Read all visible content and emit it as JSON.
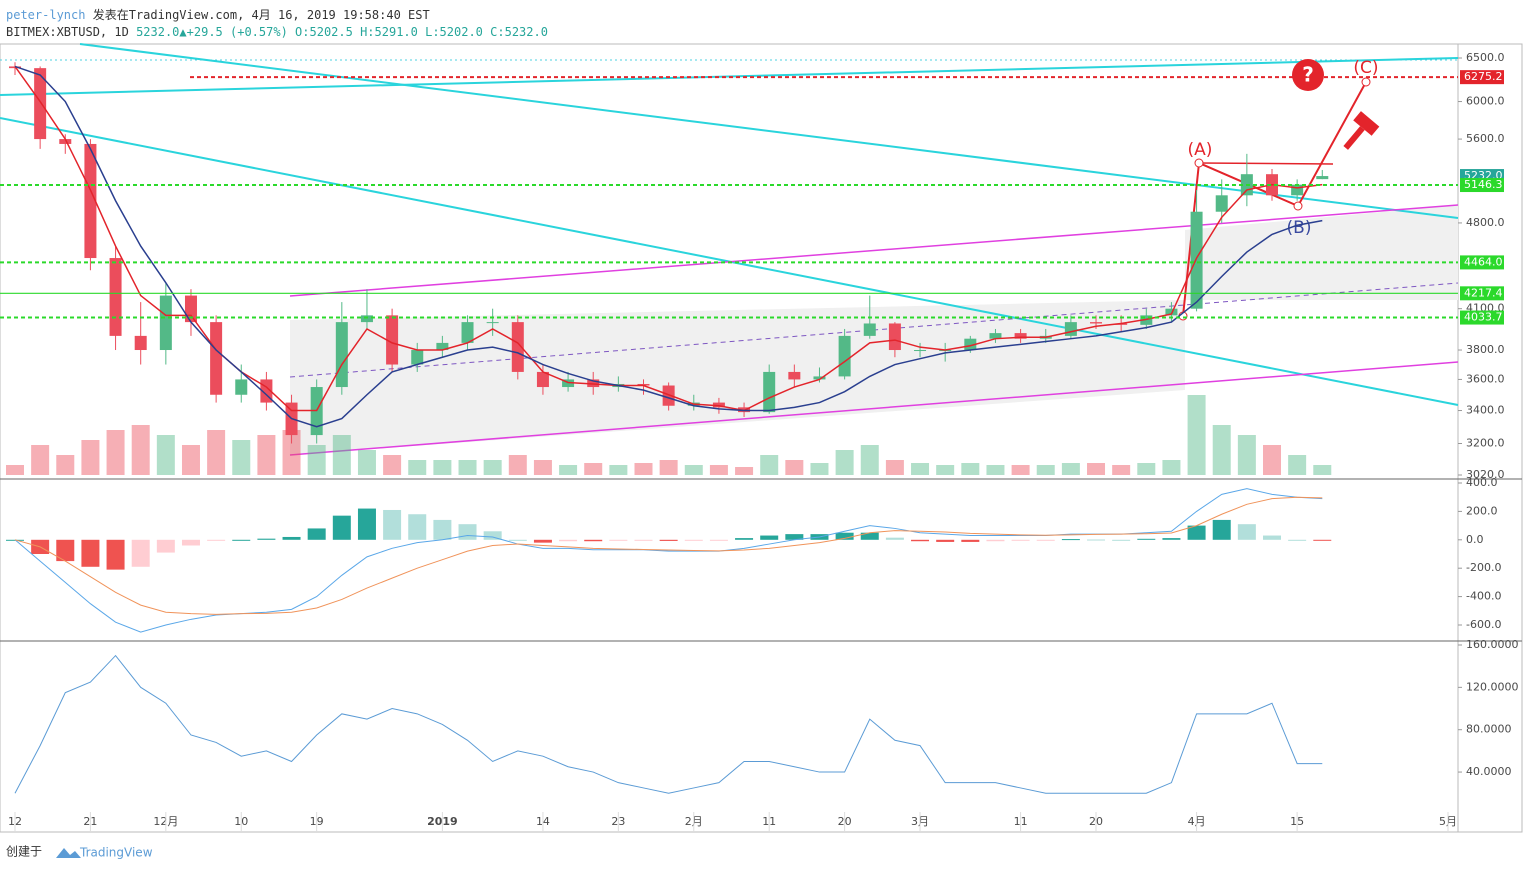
{
  "header": {
    "author": "peter-lynch",
    "published": "发表在TradingView.com, 4月 16, 2019 19:58:40 EST",
    "symbol": "BITMEX:XBTUSD, 1D",
    "last": "5232.0",
    "change": "+29.5 (+0.57%)",
    "open": "O:5202.5",
    "high": "H:5291.0",
    "low": "L:5202.0",
    "close": "C:5232.0"
  },
  "footer": {
    "created": "创建于",
    "brand": "TradingView"
  },
  "annotations": {
    "a": "(A)",
    "b": "(B)",
    "c": "(C)",
    "question": "?"
  },
  "chart_data": [
    {
      "type": "candlestick",
      "log_scale": true,
      "ylim": [
        3020,
        6500
      ],
      "yticks": [
        {
          "value": 6500,
          "label": "6500.0"
        },
        {
          "value": 6000,
          "label": "6000.0"
        },
        {
          "value": 5600,
          "label": "5600.0"
        },
        {
          "value": 4800,
          "label": "4800.0"
        },
        {
          "value": 4100,
          "label": "4100.0"
        },
        {
          "value": 3800,
          "label": "3800.0"
        },
        {
          "value": 3600,
          "label": "3600.0"
        },
        {
          "value": 3400,
          "label": "3400.0"
        },
        {
          "value": 3200,
          "label": "3200.0"
        },
        {
          "value": 3020,
          "label": "3020.0"
        }
      ],
      "categories": [
        "12",
        null,
        null,
        "21",
        null,
        null,
        "12月",
        null,
        null,
        "10",
        null,
        null,
        "19",
        null,
        null,
        null,
        null,
        "2019",
        null,
        null,
        null,
        "14",
        null,
        null,
        "23",
        null,
        null,
        "2月",
        null,
        null,
        "11",
        null,
        null,
        "20",
        null,
        null,
        "3月",
        null,
        null,
        null,
        "11",
        null,
        null,
        "20",
        null,
        null,
        null,
        "4月",
        null,
        null,
        null,
        "15",
        null,
        null,
        null,
        null,
        null,
        "5月"
      ],
      "up_color": "#53b987",
      "down_color": "#eb4d5c",
      "open": [
        6400,
        6380,
        5600,
        5550,
        4500,
        3900,
        3800,
        4200,
        4000,
        3500,
        3600,
        3450,
        3250,
        3550,
        4000,
        4050,
        3700,
        3800,
        3850,
        4000,
        4000,
        3650,
        3550,
        3600,
        3550,
        3570,
        3560,
        3430,
        3450,
        3420,
        3390,
        3650,
        3600,
        3620,
        3900,
        3990,
        3800,
        3800,
        3800,
        3880,
        3920,
        3880,
        3900,
        4000,
        3990,
        3980,
        4050,
        4100,
        4900,
        5050,
        5250,
        5050,
        5202.5,
        null,
        null,
        null,
        null,
        null
      ],
      "high": [
        6450,
        6400,
        5650,
        5600,
        4600,
        4150,
        4300,
        4250,
        4050,
        3700,
        3650,
        3500,
        3600,
        4150,
        4250,
        4100,
        3850,
        3900,
        4050,
        4100,
        4050,
        3700,
        3650,
        3650,
        3620,
        3600,
        3580,
        3500,
        3480,
        3450,
        3700,
        3700,
        3680,
        3950,
        4200,
        4000,
        3850,
        3850,
        3900,
        3950,
        3950,
        3950,
        4050,
        4050,
        4050,
        4100,
        4150,
        5100,
        5200,
        5450,
        5300,
        5200,
        5291,
        null,
        null,
        null,
        null,
        null
      ],
      "low": [
        6300,
        5500,
        5450,
        4400,
        3800,
        3700,
        3700,
        3900,
        3450,
        3450,
        3400,
        3200,
        3200,
        3500,
        3950,
        3650,
        3650,
        3750,
        3800,
        3900,
        3600,
        3500,
        3520,
        3500,
        3520,
        3500,
        3400,
        3400,
        3380,
        3360,
        3380,
        3550,
        3580,
        3600,
        3880,
        3750,
        3750,
        3720,
        3780,
        3850,
        3850,
        3850,
        3880,
        3950,
        3930,
        3950,
        4000,
        4080,
        4800,
        4950,
        5000,
        5000,
        5202,
        null,
        null,
        null,
        null,
        null
      ],
      "close": [
        6380,
        5600,
        5550,
        4500,
        3900,
        3800,
        4200,
        4000,
        3500,
        3600,
        3450,
        3250,
        3550,
        4000,
        4050,
        3700,
        3800,
        3850,
        4000,
        4000,
        3650,
        3550,
        3600,
        3550,
        3570,
        3560,
        3430,
        3450,
        3420,
        3390,
        3650,
        3600,
        3620,
        3900,
        3990,
        3800,
        3800,
        3800,
        3880,
        3920,
        3880,
        3900,
        4000,
        3990,
        3980,
        4050,
        4100,
        4900,
        5050,
        5250,
        5050,
        5150,
        5232,
        null,
        null,
        null,
        null,
        null
      ],
      "volume": [
        10,
        30,
        20,
        35,
        45,
        50,
        40,
        30,
        45,
        35,
        40,
        45,
        30,
        40,
        25,
        20,
        15,
        15,
        15,
        15,
        20,
        15,
        10,
        12,
        10,
        12,
        15,
        10,
        10,
        8,
        20,
        15,
        12,
        25,
        30,
        15,
        12,
        10,
        12,
        10,
        10,
        10,
        12,
        12,
        10,
        12,
        15,
        80,
        50,
        40,
        30,
        20,
        10,
        null,
        null,
        null,
        null,
        null
      ],
      "series": [
        {
          "color": "#e3242b",
          "values": [
            6400,
            6000,
            5600,
            5100,
            4600,
            4200,
            4050,
            4050,
            3800,
            3650,
            3550,
            3400,
            3400,
            3700,
            3950,
            3850,
            3800,
            3800,
            3850,
            3950,
            3850,
            3650,
            3580,
            3570,
            3560,
            3560,
            3500,
            3440,
            3430,
            3400,
            3480,
            3550,
            3600,
            3720,
            3850,
            3870,
            3820,
            3800,
            3830,
            3880,
            3890,
            3890,
            3930,
            3970,
            3990,
            4020,
            4060,
            4500,
            4850,
            5100,
            5150,
            5120,
            5150,
            null,
            null,
            null,
            null,
            null
          ]
        },
        {
          "color": "#2a3f8f",
          "values": [
            6400,
            6300,
            6000,
            5500,
            5000,
            4600,
            4300,
            4000,
            3800,
            3650,
            3500,
            3350,
            3300,
            3350,
            3500,
            3650,
            3700,
            3750,
            3800,
            3820,
            3780,
            3700,
            3640,
            3590,
            3560,
            3530,
            3480,
            3430,
            3410,
            3400,
            3400,
            3420,
            3450,
            3520,
            3620,
            3700,
            3740,
            3780,
            3800,
            3820,
            3840,
            3860,
            3880,
            3900,
            3930,
            3960,
            4000,
            4150,
            4350,
            4550,
            4700,
            4780,
            4820,
            null,
            null,
            null,
            null,
            null
          ]
        }
      ],
      "price_labels": [
        {
          "value": 6275.2,
          "label": "6275.2",
          "color": "#e3242b",
          "style": "dashed"
        },
        {
          "value": 5232.0,
          "label": "5232.0",
          "color": "#26a69a",
          "style": "none"
        },
        {
          "value": 5146.3,
          "label": "5146.3",
          "color": "#2bd92b",
          "style": "dashed"
        },
        {
          "value": 4464.0,
          "label": "4464.0",
          "color": "#2bd92b",
          "style": "dashed"
        },
        {
          "value": 4217.4,
          "label": "4217.4",
          "color": "#2bd92b",
          "style": "solid"
        },
        {
          "value": 4033.7,
          "label": "4033.7",
          "color": "#2bd92b",
          "style": "dashed"
        }
      ]
    },
    {
      "type": "macd",
      "ylim": [
        -705,
        425
      ],
      "yticks": [
        {
          "value": 400,
          "label": "400.0"
        },
        {
          "value": 200,
          "label": "200.0"
        },
        {
          "value": 0,
          "label": "0.0"
        },
        {
          "value": -200,
          "label": "-200.0"
        },
        {
          "value": -400,
          "label": "-400.0"
        },
        {
          "value": -600,
          "label": "-600.0"
        }
      ],
      "histogram": [
        0,
        -100,
        -150,
        -190,
        -210,
        -190,
        -90,
        -40,
        -5,
        0,
        8,
        20,
        80,
        170,
        220,
        210,
        180,
        140,
        110,
        60,
        0,
        -20,
        -10,
        -10,
        -5,
        -2,
        -8,
        -5,
        -2,
        12,
        30,
        40,
        40,
        50,
        50,
        15,
        -10,
        -15,
        -15,
        -10,
        -5,
        -2,
        5,
        2,
        0,
        7,
        12,
        100,
        140,
        110,
        30,
        0,
        -5,
        null,
        null,
        null,
        null,
        null
      ],
      "series": [
        {
          "color": "#5aa7e8",
          "values": [
            0,
            -150,
            -300,
            -450,
            -580,
            -650,
            -600,
            -560,
            -530,
            -520,
            -510,
            -490,
            -400,
            -250,
            -120,
            -60,
            -20,
            0,
            30,
            20,
            -30,
            -60,
            -60,
            -70,
            -70,
            -70,
            -80,
            -80,
            -80,
            -60,
            -30,
            0,
            20,
            60,
            100,
            80,
            50,
            40,
            30,
            30,
            30,
            30,
            40,
            40,
            40,
            50,
            60,
            200,
            320,
            360,
            320,
            300,
            290,
            null,
            null,
            null,
            null,
            null
          ]
        },
        {
          "color": "#f0935a",
          "values": [
            0,
            -50,
            -150,
            -260,
            -370,
            -460,
            -510,
            -520,
            -525,
            -520,
            -518,
            -510,
            -480,
            -420,
            -340,
            -270,
            -200,
            -140,
            -80,
            -40,
            -30,
            -40,
            -50,
            -60,
            -65,
            -68,
            -72,
            -75,
            -78,
            -72,
            -60,
            -40,
            -20,
            10,
            50,
            65,
            60,
            55,
            45,
            40,
            35,
            32,
            35,
            38,
            40,
            43,
            48,
            100,
            180,
            250,
            290,
            300,
            295,
            null,
            null,
            null,
            null,
            null
          ]
        }
      ]
    },
    {
      "type": "line",
      "ylim": [
        -15,
        162
      ],
      "yticks": [
        {
          "value": 160,
          "label": "160.0000"
        },
        {
          "value": 120,
          "label": "120.0000"
        },
        {
          "value": 80,
          "label": "80.0000"
        },
        {
          "value": 40,
          "label": "40.0000"
        }
      ],
      "series": [
        {
          "color": "#5b9bd5",
          "values": [
            20,
            65,
            115,
            125,
            150,
            120,
            105,
            75,
            68,
            55,
            60,
            50,
            75,
            95,
            90,
            100,
            95,
            85,
            70,
            50,
            60,
            55,
            45,
            40,
            30,
            25,
            20,
            25,
            30,
            50,
            50,
            45,
            40,
            40,
            90,
            70,
            65,
            30,
            30,
            30,
            25,
            20,
            20,
            20,
            20,
            20,
            30,
            95,
            95,
            95,
            105,
            48,
            48,
            null,
            null,
            null,
            null,
            null
          ]
        }
      ]
    }
  ]
}
